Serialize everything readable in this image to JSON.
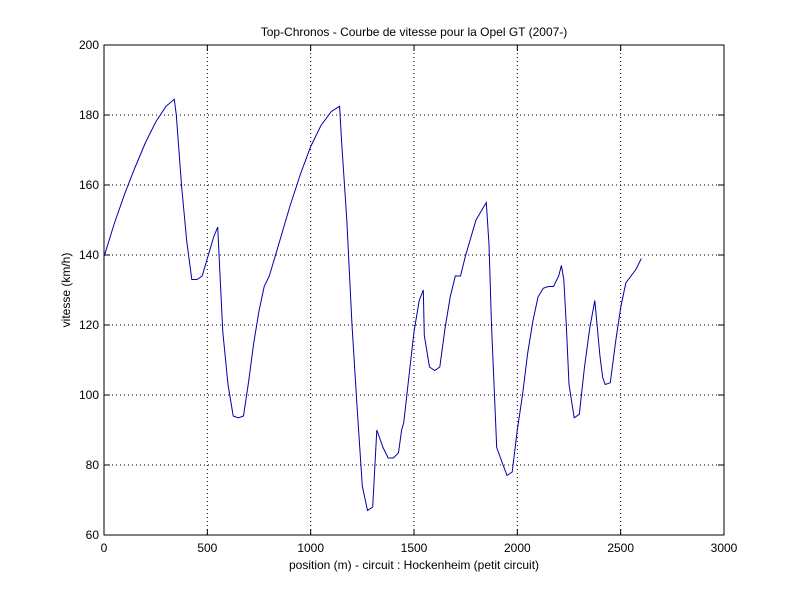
{
  "chart_data": {
    "type": "line",
    "title": "Top-Chronos - Courbe de vitesse pour la Opel GT (2007-)",
    "xlabel": "position (m) - circuit : Hockenheim (petit circuit)",
    "ylabel": "vitesse (km/h)",
    "xlim": [
      0,
      3000
    ],
    "ylim": [
      60,
      200
    ],
    "xticks": [
      0,
      500,
      1000,
      1500,
      2000,
      2500,
      3000
    ],
    "yticks": [
      60,
      80,
      100,
      120,
      140,
      160,
      180,
      200
    ],
    "xtick_labels": [
      "0",
      "500",
      "1000",
      "1500",
      "2000",
      "2500",
      "3000"
    ],
    "ytick_labels": [
      "60",
      "80",
      "100",
      "120",
      "140",
      "160",
      "180",
      "200"
    ],
    "grid": true,
    "line_color": "#0000aa",
    "series": [
      {
        "x": [
          0,
          50,
          100,
          150,
          200,
          250,
          300,
          340,
          350,
          375,
          400,
          425,
          450,
          475,
          500,
          530,
          550,
          563,
          575,
          600,
          625,
          650,
          675,
          700,
          725,
          750,
          775,
          800,
          850,
          900,
          950,
          1000,
          1050,
          1100,
          1140,
          1150,
          1175,
          1200,
          1225,
          1250,
          1275,
          1300,
          1320,
          1350,
          1375,
          1400,
          1425,
          1440,
          1450,
          1475,
          1500,
          1525,
          1545,
          1550,
          1575,
          1600,
          1625,
          1650,
          1675,
          1700,
          1725,
          1750,
          1800,
          1850,
          1863,
          1875,
          1900,
          1925,
          1950,
          1975,
          2000,
          2025,
          2050,
          2075,
          2100,
          2125,
          2150,
          2175,
          2200,
          2213,
          2225,
          2237,
          2250,
          2275,
          2300,
          2325,
          2350,
          2375,
          2400,
          2413,
          2425,
          2450,
          2475,
          2500,
          2525,
          2550,
          2575,
          2600
        ],
        "y": [
          139.5,
          149,
          157.5,
          165,
          172,
          178,
          182.5,
          184.5,
          180,
          160,
          144,
          133,
          133,
          134,
          139,
          145,
          148,
          132,
          118,
          103,
          94,
          93.5,
          94,
          104,
          115,
          124,
          131,
          134,
          144,
          154,
          163,
          171,
          177,
          181,
          182.5,
          172,
          150,
          120,
          96,
          74,
          67,
          68,
          90,
          85,
          82,
          82,
          83.5,
          90,
          92,
          105,
          118,
          127,
          130,
          117,
          108,
          107,
          108,
          119,
          128,
          134,
          134,
          140,
          150,
          155,
          143,
          120,
          85,
          81,
          77,
          78,
          90,
          100,
          112,
          121,
          128,
          130.5,
          131,
          131,
          134,
          137,
          133,
          120,
          103,
          93.5,
          94.5,
          108,
          119,
          127,
          111,
          105,
          103,
          103.5,
          115,
          125,
          132,
          134,
          136,
          139
        ]
      }
    ]
  }
}
